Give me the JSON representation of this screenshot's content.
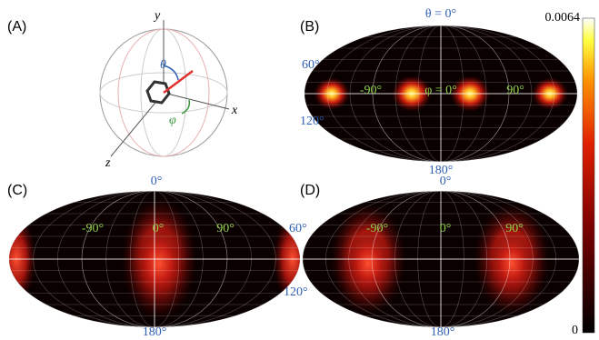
{
  "panels": [
    {
      "label": "(A)",
      "axis_y": "y",
      "axis_x": "x",
      "axis_z": "z",
      "theta": "θ",
      "phi": "φ"
    },
    {
      "label": "(B)",
      "top": "θ = 0°",
      "lat_upper": "60°",
      "lat_lower": "120°",
      "left": "-90°",
      "center": "φ = 0°",
      "right": "90°",
      "bottom": "180°"
    },
    {
      "label": "(C)",
      "top": "0°",
      "left": "-90°",
      "center": "0°",
      "right": "90°",
      "bottom": "180°"
    },
    {
      "label": "(D)",
      "top": "0°",
      "lat_upper": "60°",
      "lat_lower": "120°",
      "left": "-90°",
      "center": "0°",
      "right": "90°",
      "bottom": "180°"
    }
  ],
  "colorbar": {
    "max": 0.0064,
    "min": 0
  }
}
